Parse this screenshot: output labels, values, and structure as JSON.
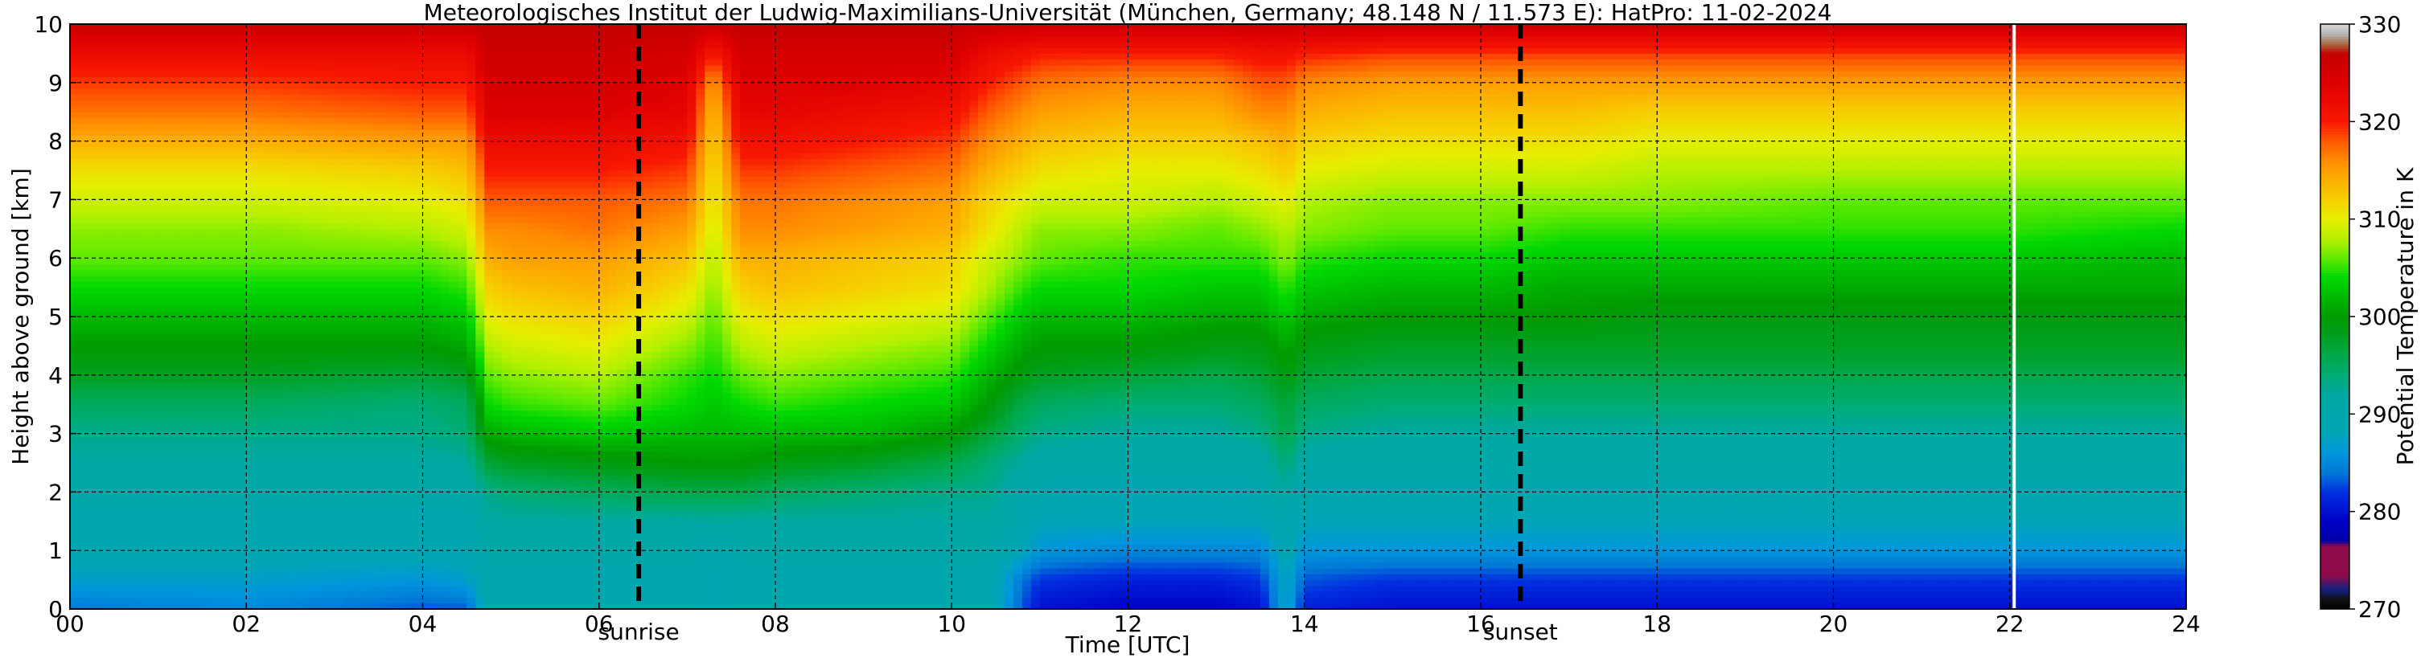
{
  "chart_data": {
    "type": "heatmap",
    "title": "Meteorologisches Institut der Ludwig-Maximilians-Universität (München, Germany; 48.148 N / 11.573 E):    HatPro: 11-02-2024",
    "xlabel": "Time [UTC]",
    "ylabel": "Height above ground [km]",
    "xlim": [
      0,
      24
    ],
    "ylim": [
      0,
      10
    ],
    "x_ticks": [
      "00",
      "02",
      "04",
      "06",
      "08",
      "10",
      "12",
      "14",
      "16",
      "18",
      "20",
      "22",
      "24"
    ],
    "y_ticks": [
      "0",
      "1",
      "2",
      "3",
      "4",
      "5",
      "6",
      "7",
      "8",
      "9",
      "10"
    ],
    "grid": true,
    "colorbar": {
      "label": "Potential Temperature in K",
      "range": [
        270,
        330
      ],
      "ticks": [
        "270",
        "280",
        "290",
        "300",
        "310",
        "320",
        "330"
      ]
    },
    "annotations": [
      {
        "text": "sunrise",
        "x": 6.45
      },
      {
        "text": "sunset",
        "x": 16.45
      }
    ],
    "white_line_x": 22.05,
    "time_hours": [
      0,
      2,
      4,
      4.5,
      4.75,
      5,
      6,
      7,
      7.3,
      7.6,
      8,
      9,
      10,
      10.4,
      10.8,
      11,
      12,
      13,
      13.5,
      13.8,
      14,
      15,
      16,
      17,
      18,
      20,
      22,
      24
    ],
    "height_km": [
      0,
      0.5,
      1,
      1.5,
      2,
      2.5,
      3,
      3.5,
      4,
      4.5,
      5,
      5.5,
      6,
      6.5,
      7,
      7.5,
      8,
      8.5,
      9,
      9.5,
      10
    ],
    "theta_profiles_K": [
      [
        284,
        287,
        289,
        290,
        291,
        292,
        293,
        295,
        298,
        300,
        302,
        304,
        306,
        307,
        309,
        311,
        314,
        317,
        319,
        322,
        326
      ],
      [
        285,
        287,
        289,
        290,
        291,
        292,
        293,
        295,
        298,
        300,
        302,
        304,
        306,
        307,
        309,
        311,
        314,
        317,
        319,
        322,
        326
      ],
      [
        283,
        286,
        289,
        290,
        291,
        292,
        293,
        294,
        297,
        300,
        302,
        304,
        306,
        308,
        310,
        312,
        315,
        318,
        320,
        322,
        326
      ],
      [
        283,
        287,
        289,
        290,
        291,
        292,
        294,
        295,
        298,
        301,
        303,
        305,
        307,
        309,
        311,
        313,
        315,
        318,
        320,
        322,
        326
      ],
      [
        290,
        290,
        291,
        292,
        293,
        297,
        301,
        304,
        306,
        308,
        310,
        312,
        314,
        316,
        318,
        320,
        322,
        324,
        325,
        326,
        327
      ],
      [
        290,
        290,
        291,
        292,
        294,
        298,
        302,
        305,
        307,
        309,
        311,
        313,
        315,
        316,
        318,
        320,
        322,
        324,
        325,
        326,
        327
      ],
      [
        290,
        290,
        291,
        292,
        295,
        299,
        303,
        306,
        308,
        310,
        312,
        314,
        315,
        317,
        318,
        320,
        322,
        324,
        325,
        326,
        327
      ],
      [
        290,
        290,
        291,
        292,
        296,
        300,
        302,
        304,
        305,
        307,
        309,
        311,
        313,
        315,
        317,
        319,
        321,
        323,
        324,
        325,
        327
      ],
      [
        289,
        289,
        290,
        292,
        296,
        300,
        302,
        303,
        304,
        305,
        306,
        307,
        308,
        309,
        310,
        311,
        312,
        313,
        315,
        320,
        326
      ],
      [
        290,
        290,
        291,
        292,
        296,
        300,
        302,
        304,
        306,
        308,
        310,
        312,
        314,
        316,
        317,
        319,
        321,
        323,
        324,
        325,
        327
      ],
      [
        290,
        290,
        291,
        292,
        295,
        299,
        302,
        305,
        307,
        309,
        311,
        313,
        314,
        316,
        317,
        319,
        321,
        323,
        324,
        325,
        327
      ],
      [
        290,
        290,
        291,
        292,
        294,
        298,
        302,
        304,
        306,
        308,
        310,
        312,
        313,
        315,
        316,
        318,
        320,
        322,
        324,
        325,
        327
      ],
      [
        290,
        290,
        291,
        292,
        293,
        296,
        300,
        303,
        305,
        307,
        309,
        311,
        312,
        314,
        315,
        317,
        319,
        321,
        323,
        325,
        327
      ],
      [
        290,
        290,
        291,
        292,
        293,
        294,
        297,
        300,
        302,
        304,
        306,
        308,
        309,
        311,
        312,
        314,
        316,
        318,
        320,
        322,
        326
      ],
      [
        283,
        284,
        288,
        290,
        291,
        292,
        294,
        296,
        299,
        301,
        303,
        305,
        307,
        308,
        310,
        312,
        314,
        316,
        318,
        321,
        326
      ],
      [
        280,
        282,
        286,
        288,
        290,
        291,
        293,
        295,
        298,
        300,
        302,
        304,
        306,
        307,
        309,
        311,
        313,
        315,
        317,
        320,
        326
      ],
      [
        279,
        281,
        285,
        288,
        289,
        291,
        292,
        294,
        297,
        300,
        302,
        304,
        305,
        307,
        309,
        310,
        312,
        314,
        316,
        320,
        326
      ],
      [
        279,
        281,
        285,
        288,
        289,
        291,
        292,
        294,
        296,
        299,
        301,
        303,
        305,
        306,
        308,
        310,
        312,
        314,
        316,
        320,
        326
      ],
      [
        280,
        282,
        285,
        288,
        290,
        291,
        293,
        295,
        297,
        299,
        301,
        303,
        305,
        307,
        309,
        311,
        313,
        316,
        318,
        321,
        326
      ],
      [
        288,
        288,
        289,
        290,
        292,
        294,
        296,
        297,
        299,
        301,
        303,
        305,
        307,
        308,
        310,
        312,
        314,
        316,
        318,
        321,
        326
      ],
      [
        281,
        283,
        286,
        288,
        290,
        291,
        293,
        295,
        297,
        299,
        301,
        303,
        305,
        307,
        308,
        310,
        312,
        314,
        316,
        320,
        326
      ],
      [
        280,
        282,
        286,
        288,
        290,
        291,
        292,
        294,
        296,
        298,
        300,
        302,
        304,
        306,
        307,
        309,
        311,
        313,
        315,
        319,
        326
      ],
      [
        280,
        282,
        286,
        288,
        290,
        291,
        292,
        294,
        296,
        298,
        300,
        302,
        304,
        306,
        307,
        309,
        311,
        313,
        315,
        319,
        326
      ],
      [
        280,
        282,
        286,
        288,
        290,
        291,
        292,
        294,
        296,
        298,
        300,
        301,
        303,
        305,
        307,
        309,
        311,
        313,
        315,
        319,
        326
      ],
      [
        280,
        282,
        286,
        288,
        290,
        291,
        292,
        294,
        296,
        298,
        299,
        301,
        303,
        305,
        307,
        308,
        310,
        312,
        315,
        319,
        326
      ],
      [
        280,
        282,
        286,
        288,
        290,
        291,
        292,
        294,
        296,
        298,
        299,
        301,
        303,
        305,
        306,
        308,
        310,
        312,
        315,
        319,
        326
      ],
      [
        280,
        282,
        286,
        288,
        290,
        291,
        292,
        294,
        296,
        298,
        299,
        301,
        303,
        305,
        306,
        308,
        310,
        312,
        315,
        319,
        326
      ],
      [
        280,
        282,
        286,
        288,
        290,
        291,
        292,
        294,
        296,
        298,
        299,
        301,
        302,
        304,
        306,
        308,
        310,
        312,
        315,
        319,
        326
      ]
    ],
    "colormap": [
      {
        "value": 270,
        "color": "#000000"
      },
      {
        "value": 271,
        "color": "#101010"
      },
      {
        "value": 272,
        "color": "#102080"
      },
      {
        "value": 273.5,
        "color": "#8e0a4a"
      },
      {
        "value": 276.5,
        "color": "#8e0a4a"
      },
      {
        "value": 277,
        "color": "#0000a6"
      },
      {
        "value": 279,
        "color": "#0000c6"
      },
      {
        "value": 282,
        "color": "#0030e0"
      },
      {
        "value": 284,
        "color": "#0078d6"
      },
      {
        "value": 286,
        "color": "#0096dc"
      },
      {
        "value": 288,
        "color": "#00a6b6"
      },
      {
        "value": 292,
        "color": "#00a8a4"
      },
      {
        "value": 294,
        "color": "#00ac74"
      },
      {
        "value": 296,
        "color": "#00a84a"
      },
      {
        "value": 298,
        "color": "#00a020"
      },
      {
        "value": 300,
        "color": "#009a00"
      },
      {
        "value": 302,
        "color": "#00b800"
      },
      {
        "value": 304,
        "color": "#00d800"
      },
      {
        "value": 306,
        "color": "#60ea00"
      },
      {
        "value": 308,
        "color": "#b6f000"
      },
      {
        "value": 310,
        "color": "#e6ee00"
      },
      {
        "value": 312,
        "color": "#f6d000"
      },
      {
        "value": 314,
        "color": "#fcb000"
      },
      {
        "value": 316,
        "color": "#ff8c00"
      },
      {
        "value": 318,
        "color": "#ff5a00"
      },
      {
        "value": 320,
        "color": "#f81800"
      },
      {
        "value": 324,
        "color": "#de0000"
      },
      {
        "value": 327,
        "color": "#c40000"
      },
      {
        "value": 328,
        "color": "#a86a40"
      },
      {
        "value": 329,
        "color": "#b4b4b4"
      },
      {
        "value": 330,
        "color": "#d8d8d8"
      }
    ]
  }
}
